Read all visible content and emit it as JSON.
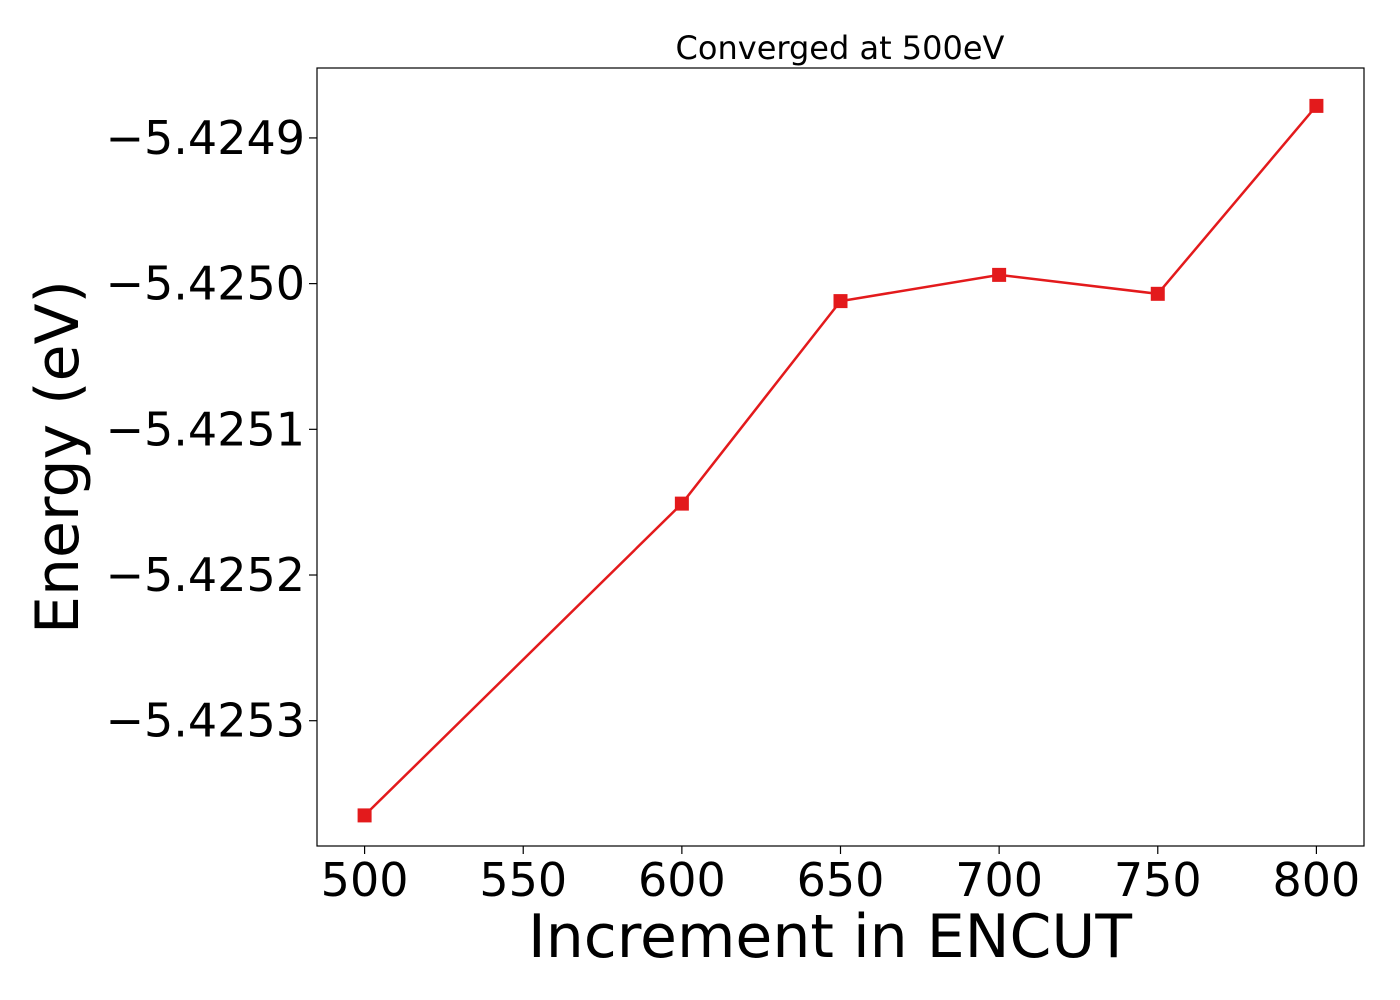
{
  "chart_data": {
    "type": "line",
    "title": "Converged at 500eV",
    "xlabel": "Increment in ENCUT",
    "ylabel": "Energy (eV)",
    "x": [
      500,
      600,
      650,
      700,
      750,
      800
    ],
    "series": [
      {
        "values": [
          -5.425365,
          -5.425151,
          -5.425012,
          -5.424994,
          -5.425007,
          -5.424878
        ],
        "color": "#e31a1c",
        "marker": "square"
      }
    ],
    "xlim": [
      485,
      815
    ],
    "ylim": [
      -5.425386,
      -5.424852
    ],
    "xticks": [
      500,
      550,
      600,
      650,
      700,
      750,
      800
    ],
    "xtick_labels": [
      "500",
      "550",
      "600",
      "650",
      "700",
      "750",
      "800"
    ],
    "yticks": [
      -5.4253,
      -5.4252,
      -5.4251,
      -5.425,
      -5.4249
    ],
    "ytick_labels": [
      "−5.4253",
      "−5.4252",
      "−5.4251",
      "−5.4250",
      "−5.4249"
    ],
    "grid": false,
    "legend": false
  }
}
